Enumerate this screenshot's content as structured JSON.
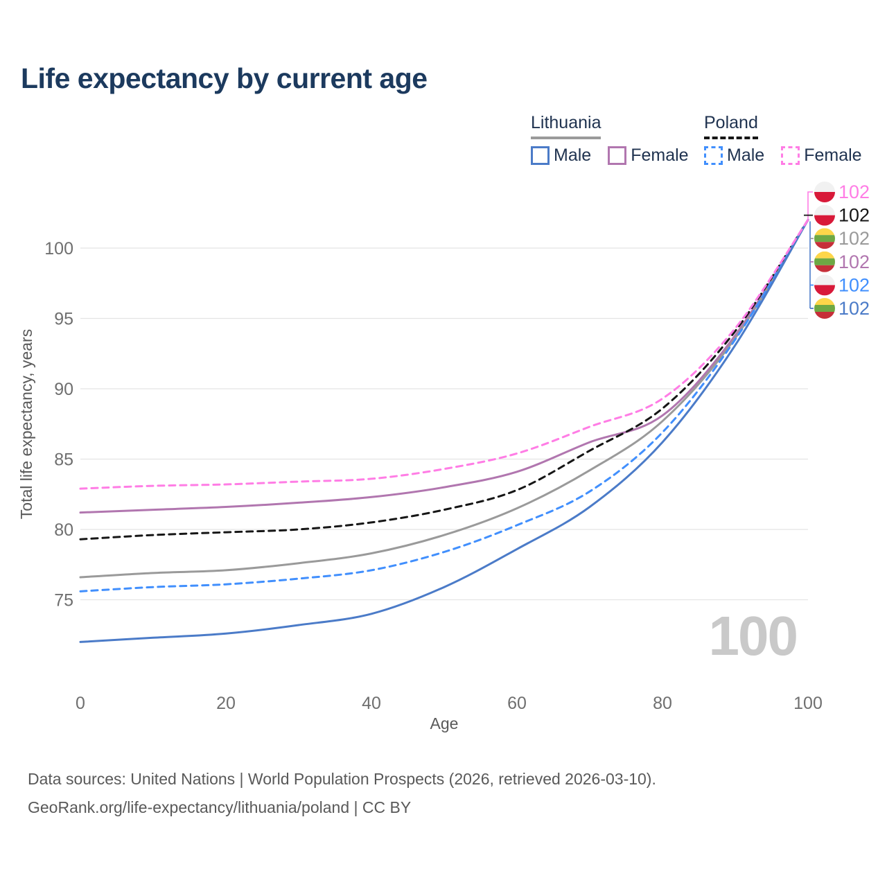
{
  "title": "Life expectancy by current age",
  "watermark": "100",
  "legend": {
    "groups": [
      {
        "label": "Lithuania",
        "line_style": "solid",
        "underline_color": "#9a9a9a",
        "items": [
          {
            "label": "Male",
            "color": "#4b7bc8"
          },
          {
            "label": "Female",
            "color": "#b176af"
          }
        ]
      },
      {
        "label": "Poland",
        "line_style": "dashed",
        "underline_color": "#161616",
        "items": [
          {
            "label": "Male",
            "color": "#418ffd"
          },
          {
            "label": "Female",
            "color": "#ff7de5"
          }
        ]
      }
    ]
  },
  "chart_data": {
    "type": "line",
    "title": "Life expectancy by current age",
    "xlabel": "Age",
    "ylabel": "Total life expectancy, years",
    "x": [
      0,
      10,
      20,
      30,
      40,
      50,
      60,
      70,
      80,
      90,
      100
    ],
    "xticks": [
      0,
      20,
      40,
      60,
      80,
      100
    ],
    "yticks": [
      75,
      80,
      85,
      90,
      95,
      100
    ],
    "xlim": [
      0,
      100
    ],
    "ylim": [
      71,
      103
    ],
    "grid": "horizontal",
    "series": [
      {
        "name": "Lithuania Male",
        "country": "Lithuania",
        "sex": "Male",
        "color": "#4b7bc8",
        "dash": "solid",
        "z": 5,
        "values": [
          72.0,
          72.3,
          72.6,
          73.2,
          74.0,
          75.9,
          78.6,
          81.6,
          86.2,
          93.1,
          102
        ]
      },
      {
        "name": "Lithuania Female",
        "country": "Lithuania",
        "sex": "Female",
        "color": "#b176af",
        "dash": "solid",
        "z": 1,
        "values": [
          81.2,
          81.4,
          81.6,
          81.9,
          82.3,
          83.0,
          84.1,
          86.2,
          88.1,
          93.8,
          102
        ]
      },
      {
        "name": "Lithuania Both sexes",
        "country": "Lithuania",
        "sex": "Both",
        "color": "#9a9a9a",
        "dash": "solid",
        "z": 2,
        "values": [
          76.6,
          76.9,
          77.1,
          77.6,
          78.3,
          79.6,
          81.5,
          84.2,
          87.7,
          93.6,
          102
        ]
      },
      {
        "name": "Poland Male",
        "country": "Poland",
        "sex": "Male",
        "color": "#418ffd",
        "dash": "dashed",
        "z": 4,
        "values": [
          75.6,
          75.9,
          76.1,
          76.5,
          77.1,
          78.4,
          80.3,
          82.7,
          86.9,
          93.5,
          102
        ]
      },
      {
        "name": "Poland Female",
        "country": "Poland",
        "sex": "Female",
        "color": "#ff7de5",
        "dash": "dashed",
        "z": 6,
        "values": [
          82.9,
          83.1,
          83.2,
          83.4,
          83.6,
          84.3,
          85.4,
          87.3,
          89.3,
          94.3,
          102
        ]
      },
      {
        "name": "Poland Both sexes",
        "country": "Poland",
        "sex": "Both",
        "color": "#161616",
        "dash": "dashed",
        "z": 3,
        "values": [
          79.3,
          79.6,
          79.8,
          80.0,
          80.5,
          81.4,
          82.8,
          85.6,
          88.6,
          94.1,
          102
        ]
      }
    ],
    "end_labels": [
      {
        "value": "102",
        "series": "Poland Female",
        "flag": "poland",
        "color": "#ff7de5"
      },
      {
        "value": "102",
        "series": "Poland Both sexes",
        "flag": "poland",
        "color": "#161616"
      },
      {
        "value": "102",
        "series": "Lithuania Both sexes",
        "flag": "lithuania",
        "color": "#9a9a9a"
      },
      {
        "value": "102",
        "series": "Lithuania Female",
        "flag": "lithuania",
        "color": "#b176af"
      },
      {
        "value": "102",
        "series": "Poland Male",
        "flag": "poland",
        "color": "#418ffd"
      },
      {
        "value": "102",
        "series": "Lithuania Male",
        "flag": "lithuania",
        "color": "#4b7bc8"
      }
    ],
    "flag_colors": {
      "poland": [
        "#f1f1f1",
        "#d81939"
      ],
      "lithuania": [
        "#fdd64a",
        "#6ea844",
        "#c62f39"
      ]
    }
  },
  "footer": {
    "line1": "Data sources: United Nations | World Population Prospects (2026, retrieved 2026-03-10).",
    "line2": "GeoRank.org/life-expectancy/lithuania/poland | CC BY"
  }
}
